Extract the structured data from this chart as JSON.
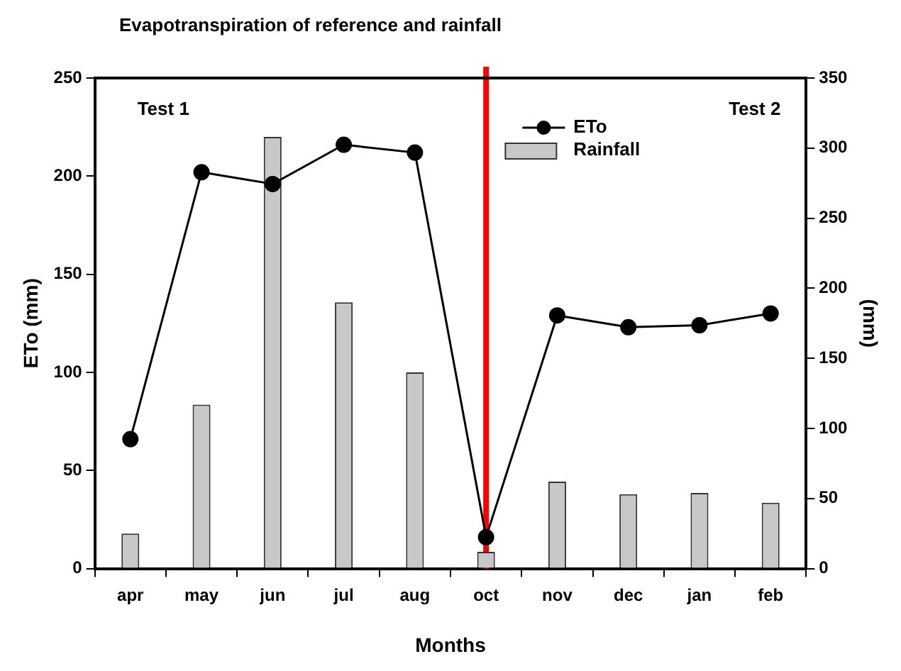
{
  "chart_data": {
    "type": "bar",
    "title": "Evapotranspiration of reference and rainfall",
    "xlabel": "Months",
    "ylabel": "ETo (mm)",
    "y2label": "(mm)",
    "categories": [
      "apr",
      "may",
      "jun",
      "jul",
      "aug",
      "oct",
      "nov",
      "dec",
      "jan",
      "feb"
    ],
    "series": [
      {
        "name": "ETo",
        "type": "line",
        "color": "#000000",
        "values": [
          66,
          202,
          196,
          216,
          212,
          16,
          129,
          123,
          124,
          130
        ]
      },
      {
        "name": "Rainfall",
        "axis": "y2",
        "color": "#c8c8c8",
        "values": [
          25,
          117,
          308,
          190,
          140,
          12,
          62,
          53,
          54,
          47
        ]
      }
    ],
    "ylim": [
      0,
      250
    ],
    "yticks": [
      0,
      50,
      100,
      150,
      200,
      250
    ],
    "y2lim": [
      0,
      350
    ],
    "y2ticks": [
      0,
      50,
      100,
      150,
      200,
      250,
      300,
      350
    ],
    "ref_lines": [
      {
        "axis": "x",
        "value": "oct",
        "color": "#ff0000"
      }
    ],
    "annotations": [
      "Test 1",
      "Test 2"
    ],
    "grid": false,
    "legend": "top right",
    "marker": "circle",
    "line_style": "solid"
  }
}
